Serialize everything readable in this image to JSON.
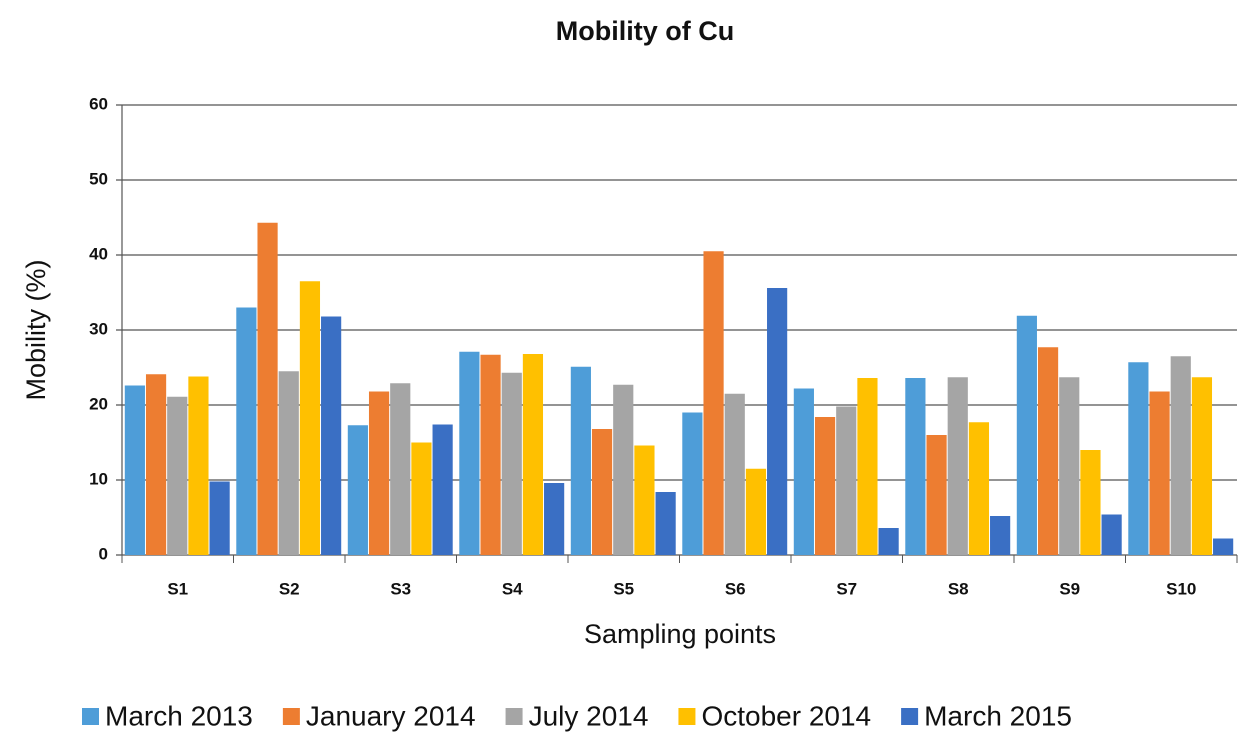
{
  "chart_data": {
    "type": "bar",
    "title": "Mobility of Cu",
    "xlabel": "Sampling points",
    "ylabel": "Mobility (%)",
    "categories": [
      "S1",
      "S2",
      "S3",
      "S4",
      "S5",
      "S6",
      "S7",
      "S8",
      "S9",
      "S10"
    ],
    "series": [
      {
        "name": "March 2013",
        "color": "#4e9dd8",
        "values": [
          22.6,
          33.0,
          17.3,
          27.1,
          25.1,
          19.0,
          22.2,
          23.6,
          31.9,
          25.7
        ]
      },
      {
        "name": "January 2014",
        "color": "#ed7d31",
        "values": [
          24.1,
          44.3,
          21.8,
          26.7,
          16.8,
          40.5,
          18.4,
          16.0,
          27.7,
          21.8
        ]
      },
      {
        "name": "July 2014",
        "color": "#a5a5a5",
        "values": [
          21.1,
          24.5,
          22.9,
          24.3,
          22.7,
          21.5,
          19.8,
          23.7,
          23.7,
          26.5
        ]
      },
      {
        "name": "October 2014",
        "color": "#ffc000",
        "values": [
          23.8,
          36.5,
          15.0,
          26.8,
          14.6,
          11.5,
          23.6,
          17.7,
          14.0,
          23.7
        ]
      },
      {
        "name": "March 2015",
        "color": "#3a6fc4",
        "values": [
          9.8,
          31.8,
          17.4,
          9.6,
          8.4,
          35.6,
          3.6,
          5.2,
          5.4,
          2.2
        ]
      }
    ],
    "ylim": [
      0,
      60
    ],
    "yticks": [
      0,
      10,
      20,
      30,
      40,
      50,
      60
    ],
    "grid": true,
    "legend": "bottom"
  }
}
